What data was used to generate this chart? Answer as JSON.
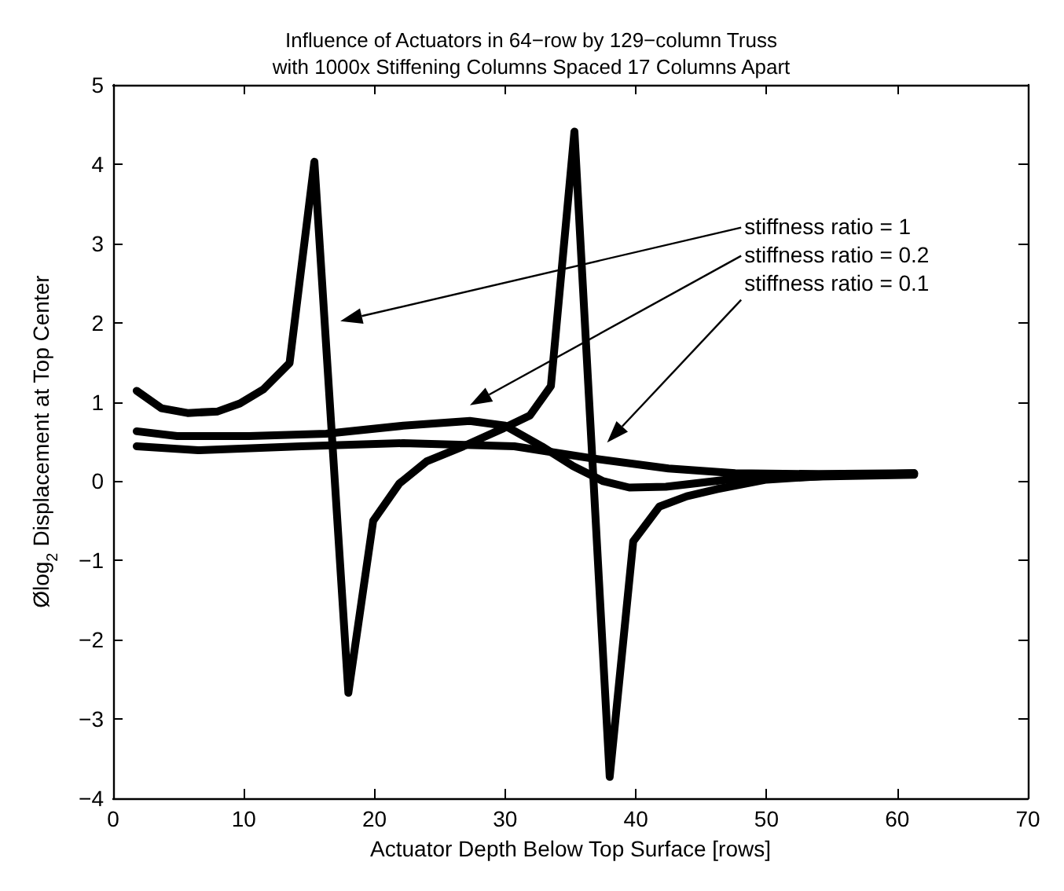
{
  "chart_data": {
    "type": "line",
    "title": "Influence of Actuators in 64−row by 129−column Truss\nwith 1000x Stiffening Columns Spaced 17 Columns Apart",
    "xlabel": "Actuator Depth Below Top Surface [rows]",
    "ylabel": "Ølog$_{2}$ Displacement at Top Center",
    "xlim": [
      0,
      70
    ],
    "xticks": [
      0,
      10,
      20,
      30,
      40,
      50,
      60,
      70
    ],
    "ylim": [
      -4,
      5
    ],
    "yticks": [
      -4,
      -3,
      -2,
      -1,
      0,
      1,
      2,
      3,
      4,
      5
    ],
    "grid": false,
    "marker": "none",
    "line_style": "solid",
    "series": [
      {
        "color": "#000000",
        "x": [
          1.8,
          3.7,
          5.7,
          8,
          9.7,
          11.5,
          13.5,
          15.4,
          18,
          19.9,
          21.9,
          24,
          26.8,
          29.9,
          31.9,
          33.5,
          35.3,
          38,
          39.8,
          41.8,
          43.9,
          46.2,
          50,
          55,
          61.3
        ],
        "values": [
          1.14,
          0.92,
          0.86,
          0.88,
          0.98,
          1.16,
          1.49,
          4.03,
          -2.67,
          -0.5,
          -0.03,
          0.25,
          0.44,
          0.67,
          0.83,
          1.2,
          4.41,
          -3.73,
          -0.76,
          -0.32,
          -0.19,
          -0.1,
          0.02,
          0.07,
          0.1
        ]
      },
      {
        "color": "#000000",
        "x": [
          1.8,
          4.9,
          10.4,
          16.3,
          22.2,
          27.3,
          30,
          32.8,
          35.2,
          37.5,
          39.5,
          42.3,
          47,
          54,
          61.3
        ],
        "values": [
          0.63,
          0.57,
          0.57,
          0.6,
          0.7,
          0.76,
          0.7,
          0.44,
          0.19,
          0,
          -0.08,
          -0.07,
          0.02,
          0.06,
          0.08
        ]
      },
      {
        "color": "#000000",
        "x": [
          1.8,
          6.5,
          14.4,
          22.2,
          30.7,
          36.6,
          42.5,
          47.6,
          54,
          61.3
        ],
        "values": [
          0.44,
          0.39,
          0.44,
          0.48,
          0.44,
          0.29,
          0.16,
          0.1,
          0.09,
          0.1
        ]
      }
    ],
    "annotations": [
      "stiffness ratio = 1",
      "stiffness ratio = 0.2",
      "stiffness ratio = 0.1"
    ]
  }
}
